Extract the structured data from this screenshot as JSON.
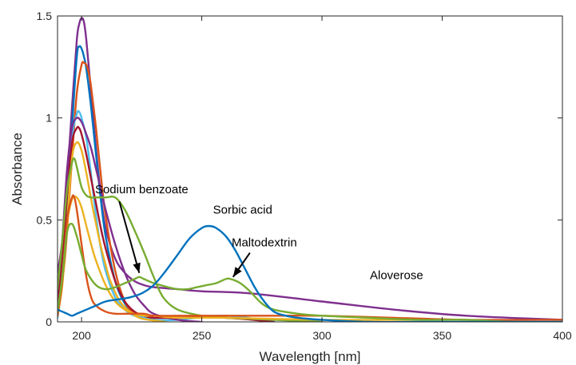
{
  "chart_data": {
    "type": "line",
    "title": "",
    "xlabel": "Wavelength [nm]",
    "ylabel": "Absorbance",
    "xlim": [
      190,
      400
    ],
    "ylim": [
      0,
      1.5
    ],
    "xticks": [
      200,
      250,
      300,
      350,
      400
    ],
    "xtick_labels": [
      "200",
      "250",
      "300",
      "350",
      "400"
    ],
    "yticks": [
      0,
      0.5,
      1,
      1.5
    ],
    "ytick_labels": [
      "0",
      "0.5",
      "1",
      "1.5"
    ],
    "grid": false,
    "legend": "none",
    "annotations": [
      {
        "text": "Sodium benzoate",
        "x": 225,
        "y": 0.63,
        "arrow_to": [
          224,
          0.24
        ]
      },
      {
        "text": "Sorbic acid",
        "x": 267,
        "y": 0.53
      },
      {
        "text": "Maltodextrin",
        "x": 276,
        "y": 0.37,
        "arrow_to": [
          263,
          0.22
        ]
      },
      {
        "text": "Aloverose",
        "x": 331,
        "y": 0.21
      }
    ],
    "series": [
      {
        "color": "#7e2f8e",
        "x": [
          190,
          192,
          194,
          196,
          198,
          199,
          200,
          201,
          202,
          204,
          206,
          208,
          210,
          214,
          218,
          222,
          226,
          230,
          240,
          250,
          270,
          300,
          330,
          360,
          400
        ],
        "y": [
          0.24,
          0.4,
          0.7,
          1.05,
          1.38,
          1.46,
          1.49,
          1.47,
          1.38,
          1.12,
          0.85,
          0.62,
          0.46,
          0.31,
          0.24,
          0.2,
          0.18,
          0.17,
          0.16,
          0.15,
          0.14,
          0.1,
          0.06,
          0.03,
          0.01
        ]
      },
      {
        "color": "#0072bd",
        "x": [
          190,
          193,
          196,
          198,
          199,
          200,
          201,
          202,
          204,
          206,
          208,
          210,
          214,
          218,
          222,
          226,
          230
        ],
        "y": [
          0.04,
          0.35,
          0.95,
          1.3,
          1.35,
          1.34,
          1.3,
          1.24,
          1.05,
          0.82,
          0.6,
          0.42,
          0.2,
          0.09,
          0.04,
          0.02,
          0.01
        ]
      },
      {
        "color": "#d95319",
        "x": [
          190,
          193,
          196,
          198,
          200,
          201,
          202,
          203,
          204,
          206,
          208,
          210,
          214,
          218,
          222,
          226,
          230,
          235
        ],
        "y": [
          0.05,
          0.3,
          0.8,
          1.12,
          1.26,
          1.27,
          1.26,
          1.22,
          1.15,
          0.95,
          0.72,
          0.52,
          0.25,
          0.1,
          0.04,
          0.02,
          0.01,
          0.0
        ]
      },
      {
        "color": "#4dbeee",
        "x": [
          190,
          192,
          194,
          196,
          198,
          199,
          200,
          202,
          204,
          206,
          208,
          210,
          214,
          218,
          222,
          226,
          230,
          240,
          260,
          280
        ],
        "y": [
          0.02,
          0.2,
          0.55,
          0.9,
          1.02,
          1.03,
          1.0,
          0.9,
          0.72,
          0.52,
          0.36,
          0.25,
          0.12,
          0.06,
          0.03,
          0.02,
          0.01,
          0.01,
          0.03,
          0.0
        ]
      },
      {
        "color": "#7e2f8e",
        "x": [
          190,
          192,
          194,
          196,
          198,
          200,
          202,
          204,
          206,
          208,
          210,
          214,
          218,
          222,
          226,
          230,
          240,
          250
        ],
        "y": [
          0.12,
          0.4,
          0.75,
          0.95,
          1.0,
          0.98,
          0.92,
          0.85,
          0.75,
          0.65,
          0.55,
          0.38,
          0.24,
          0.14,
          0.08,
          0.04,
          0.01,
          0.0
        ]
      },
      {
        "color": "#a2142f",
        "x": [
          190,
          192,
          194,
          196,
          198,
          199,
          200,
          202,
          204,
          206,
          208,
          210,
          214,
          218,
          222,
          226,
          230,
          240,
          260,
          280
        ],
        "y": [
          0.06,
          0.3,
          0.62,
          0.88,
          0.95,
          0.95,
          0.92,
          0.82,
          0.7,
          0.58,
          0.46,
          0.36,
          0.2,
          0.1,
          0.05,
          0.03,
          0.02,
          0.02,
          0.02,
          0.0
        ]
      },
      {
        "color": "#edb120",
        "x": [
          190,
          192,
          194,
          196,
          198,
          200,
          202,
          204,
          206,
          208,
          210,
          212,
          216,
          220,
          224,
          228,
          235
        ],
        "y": [
          0.03,
          0.18,
          0.48,
          0.8,
          0.88,
          0.84,
          0.73,
          0.6,
          0.48,
          0.37,
          0.28,
          0.2,
          0.1,
          0.05,
          0.02,
          0.01,
          0.0
        ]
      },
      {
        "color": "#77ac30",
        "x": [
          190,
          192,
          194,
          196,
          197,
          198,
          200,
          202,
          204,
          206,
          210,
          214,
          218,
          222,
          226,
          230,
          234,
          240,
          250,
          260,
          280,
          300
        ],
        "y": [
          0.16,
          0.4,
          0.65,
          0.78,
          0.8,
          0.76,
          0.66,
          0.62,
          0.61,
          0.61,
          0.61,
          0.61,
          0.55,
          0.45,
          0.34,
          0.22,
          0.12,
          0.06,
          0.03,
          0.02,
          0.01,
          0.0
        ]
      },
      {
        "color": "#edb120",
        "x": [
          190,
          192,
          194,
          196,
          198,
          200,
          202,
          204,
          206,
          210,
          214,
          218,
          222,
          226,
          230,
          240,
          260,
          300,
          340
        ],
        "y": [
          0.05,
          0.22,
          0.48,
          0.6,
          0.61,
          0.56,
          0.47,
          0.38,
          0.3,
          0.18,
          0.1,
          0.06,
          0.04,
          0.03,
          0.03,
          0.02,
          0.02,
          0.01,
          0.01
        ]
      },
      {
        "color": "#d95319",
        "x": [
          190,
          192,
          194,
          196,
          197,
          198,
          200,
          202,
          204,
          206,
          210,
          214,
          218,
          222,
          226,
          230,
          240,
          260,
          280,
          300,
          330,
          360,
          400
        ],
        "y": [
          0.03,
          0.2,
          0.5,
          0.61,
          0.61,
          0.55,
          0.38,
          0.22,
          0.12,
          0.08,
          0.05,
          0.04,
          0.04,
          0.04,
          0.04,
          0.03,
          0.03,
          0.03,
          0.03,
          0.03,
          0.02,
          0.01,
          0.01
        ]
      },
      {
        "color": "#77ac30",
        "x": [
          190,
          192,
          194,
          196,
          198,
          200,
          202,
          206,
          210,
          214,
          218,
          222,
          224,
          226,
          230,
          236,
          240,
          244,
          248,
          252,
          256,
          260,
          262,
          266,
          270,
          275,
          280,
          290,
          300,
          320,
          340,
          360,
          380,
          400
        ],
        "y": [
          0.05,
          0.22,
          0.44,
          0.48,
          0.42,
          0.33,
          0.25,
          0.18,
          0.16,
          0.17,
          0.19,
          0.21,
          0.22,
          0.21,
          0.19,
          0.17,
          0.16,
          0.16,
          0.17,
          0.18,
          0.19,
          0.21,
          0.21,
          0.19,
          0.15,
          0.09,
          0.06,
          0.04,
          0.03,
          0.02,
          0.01,
          0.01,
          0.0,
          0.0
        ]
      },
      {
        "color": "#0072bd",
        "x": [
          190,
          192,
          194,
          196,
          198,
          200,
          202,
          206,
          210,
          215,
          220,
          225,
          230,
          235,
          240,
          245,
          250,
          253,
          256,
          260,
          264,
          268,
          272,
          276,
          280,
          285,
          290,
          300,
          320,
          340,
          360,
          400
        ],
        "y": [
          0.06,
          0.05,
          0.04,
          0.03,
          0.04,
          0.05,
          0.06,
          0.08,
          0.1,
          0.11,
          0.12,
          0.14,
          0.18,
          0.25,
          0.33,
          0.41,
          0.46,
          0.47,
          0.46,
          0.42,
          0.35,
          0.26,
          0.17,
          0.1,
          0.05,
          0.03,
          0.02,
          0.01,
          0.0,
          0.0,
          0.0,
          0.0
        ]
      }
    ]
  }
}
